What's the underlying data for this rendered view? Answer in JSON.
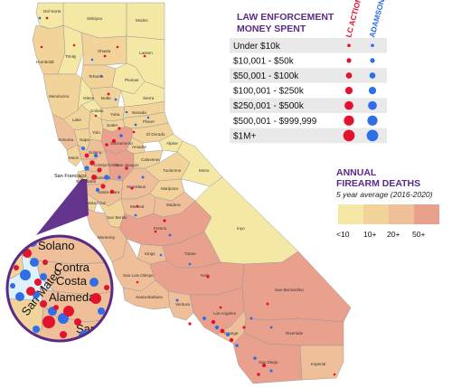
{
  "colors": {
    "lc_action": "#e3122d",
    "adamson": "#2f6ee6",
    "title_purple": "#5b2a86",
    "deaths_lt10": "#f4e8a4",
    "deaths_10": "#f2d49a",
    "deaths_20": "#eebf98",
    "deaths_50": "#e9a08d"
  },
  "spending_legend": {
    "title_line1": "LAW ENFORCEMENT",
    "title_line2": "MONEY SPENT",
    "col_lc": "LC ACTION",
    "col_adamson": "ADAMSON",
    "rows": [
      {
        "label": "Under $10k",
        "size": 1
      },
      {
        "label": "$10,001 - $50k",
        "size": 2
      },
      {
        "label": "$50,001 - $100k",
        "size": 3
      },
      {
        "label": "$100,001 - $250k",
        "size": 4
      },
      {
        "label": "$250,001 - $500k",
        "size": 5
      },
      {
        "label": "$500,001 - $999,999",
        "size": 6
      },
      {
        "label": "$1M+",
        "size": 7
      }
    ]
  },
  "deaths_legend": {
    "title_line1": "ANNUAL",
    "title_line2": "FIREARM DEATHS",
    "subtitle": "5 year average (2016-2020)",
    "bins": [
      "<10",
      "10+",
      "20+",
      "50+"
    ]
  },
  "inset": {
    "labels": [
      "Solano",
      "Contra",
      "Costa",
      "Alameda",
      "San Mateo",
      "Santa"
    ]
  },
  "map_labels": {
    "san_francisco": "San Francisco"
  },
  "counties": [
    "Del Norte",
    "Siskiyou",
    "Modoc",
    "Humboldt",
    "Trinity",
    "Shasta",
    "Lassen",
    "Tehama",
    "Plumas",
    "Mendocino",
    "Glenn",
    "Butte",
    "Sierra",
    "Lake",
    "Colusa",
    "Yuba",
    "Nevada",
    "Placer",
    "Sutter",
    "Yolo",
    "El Dorado",
    "Sonoma",
    "Napa",
    "Sacramento",
    "Amador",
    "Alpine",
    "Marin",
    "Solano",
    "Contra Costa",
    "San Joaquin",
    "Calaveras",
    "Tuolumne",
    "Mono",
    "San Mateo",
    "Alameda",
    "Santa Clara",
    "Stanislaus",
    "Mariposa",
    "Santa Cruz",
    "Merced",
    "Madera",
    "San Benito",
    "Fresno",
    "Monterey",
    "Inyo",
    "Kings",
    "Tulare",
    "San Luis Obispo",
    "Kern",
    "Santa Barbara",
    "Ventura",
    "Los Angeles",
    "San Bernardino",
    "Orange",
    "Riverside",
    "San Diego",
    "Imperial"
  ]
}
